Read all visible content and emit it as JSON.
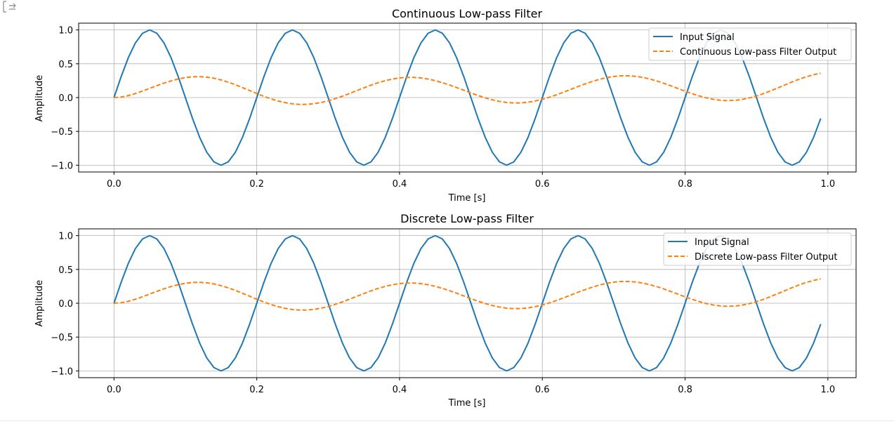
{
  "colors": {
    "input": "#1f77b4",
    "output": "#ff7f0e",
    "grid": "#b0b0b0",
    "axes": "#000000"
  },
  "chart_data": [
    {
      "type": "line",
      "title": "Continuous Low-pass Filter",
      "xlabel": "Time [s]",
      "ylabel": "Amplitude",
      "xlim": [
        -0.0495,
        1.0395
      ],
      "ylim": [
        -1.1,
        1.1
      ],
      "xticks": [
        0.0,
        0.2,
        0.4,
        0.6,
        0.8,
        1.0
      ],
      "xtick_labels": [
        "0.0",
        "0.2",
        "0.4",
        "0.6",
        "0.8",
        "1.0"
      ],
      "yticks": [
        1.0,
        0.5,
        0.0,
        -0.5,
        -1.0
      ],
      "ytick_labels": [
        "1.0",
        "0.5",
        "0.0",
        "−0.5",
        "−1.0"
      ],
      "grid": true,
      "legend_position": "top-right",
      "series": [
        {
          "name": "Input Signal",
          "style": "solid",
          "color_key": "input",
          "x_range": [
            0.0,
            0.99
          ],
          "x_step": 0.01,
          "values": [
            0.0,
            0.309,
            0.588,
            0.809,
            0.951,
            1.0,
            0.951,
            0.809,
            0.588,
            0.309,
            0.0,
            -0.309,
            -0.588,
            -0.809,
            -0.951,
            -1.0,
            -0.951,
            -0.809,
            -0.588,
            -0.309,
            0.0,
            0.309,
            0.588,
            0.809,
            0.951,
            1.0,
            0.951,
            0.809,
            0.588,
            0.309,
            0.0,
            -0.309,
            -0.588,
            -0.809,
            -0.951,
            -1.0,
            -0.951,
            -0.809,
            -0.588,
            -0.309,
            0.0,
            0.309,
            0.588,
            0.809,
            0.951,
            1.0,
            0.951,
            0.809,
            0.588,
            0.309,
            0.0,
            -0.309,
            -0.588,
            -0.809,
            -0.951,
            -1.0,
            -0.951,
            -0.809,
            -0.588,
            -0.309,
            0.0,
            0.309,
            0.588,
            0.809,
            0.951,
            1.0,
            0.951,
            0.809,
            0.588,
            0.309,
            0.0,
            -0.309,
            -0.588,
            -0.809,
            -0.951,
            -1.0,
            -0.951,
            -0.809,
            -0.588,
            -0.309,
            0.0,
            0.309,
            0.588,
            0.809,
            0.951,
            1.0,
            0.951,
            0.809,
            0.588,
            0.309,
            0.0,
            -0.309,
            -0.588,
            -0.809,
            -0.951,
            -1.0,
            -0.951,
            -0.809,
            -0.588,
            -0.309
          ]
        },
        {
          "name": "Continuous Low-pass Filter Output",
          "style": "dashed",
          "color_key": "output",
          "x_range": [
            0.0,
            0.99
          ],
          "x_step": 0.01,
          "values": [
            0.0,
            0.0077,
            0.0287,
            0.0595,
            0.0964,
            0.1361,
            0.1759,
            0.2136,
            0.2473,
            0.2751,
            0.2955,
            0.3072,
            0.3095,
            0.3022,
            0.2856,
            0.2604,
            0.228,
            0.1898,
            0.1477,
            0.1038,
            0.06,
            0.0184,
            -0.0191,
            -0.0509,
            -0.0757,
            -0.0926,
            -0.1009,
            -0.1003,
            -0.091,
            -0.0733,
            -0.048,
            -0.0163,
            0.0205,
            0.0607,
            0.1024,
            0.144,
            0.1836,
            0.2194,
            0.2499,
            0.2739,
            0.2904,
            0.2987,
            0.2986,
            0.2902,
            0.2738,
            0.2502,
            0.2205,
            0.186,
            0.148,
            0.1083,
            0.0686,
            0.0306,
            -0.0039,
            -0.0333,
            -0.0564,
            -0.0721,
            -0.0796,
            -0.0785,
            -0.0688,
            -0.051,
            -0.026,
            0.0052,
            0.0412,
            0.0806,
            0.1217,
            0.1628,
            0.2022,
            0.2382,
            0.2693,
            0.2942,
            0.3118,
            0.3214,
            0.3225,
            0.3151,
            0.2995,
            0.2764,
            0.2468,
            0.2122,
            0.1742,
            0.1346,
            0.0951,
            0.0576,
            0.0237,
            -0.0049,
            -0.0266,
            -0.0404,
            -0.0453,
            -0.041,
            -0.0276,
            -0.0057,
            0.0237,
            0.0593,
            0.0997,
            0.1432,
            0.1878,
            0.2316,
            0.2724,
            0.3085,
            0.338,
            0.3597
          ]
        }
      ]
    },
    {
      "type": "line",
      "title": "Discrete Low-pass Filter",
      "xlabel": "Time [s]",
      "ylabel": "Amplitude",
      "xlim": [
        -0.0495,
        1.0395
      ],
      "ylim": [
        -1.1,
        1.1
      ],
      "xticks": [
        0.0,
        0.2,
        0.4,
        0.6,
        0.8,
        1.0
      ],
      "xtick_labels": [
        "0.0",
        "0.2",
        "0.4",
        "0.6",
        "0.8",
        "1.0"
      ],
      "yticks": [
        1.0,
        0.5,
        0.0,
        -0.5,
        -1.0
      ],
      "ytick_labels": [
        "1.0",
        "0.5",
        "0.0",
        "−0.5",
        "−1.0"
      ],
      "grid": true,
      "legend_position": "top-right",
      "series": [
        {
          "name": "Input Signal",
          "style": "solid",
          "color_key": "input",
          "x_range": [
            0.0,
            0.99
          ],
          "x_step": 0.01,
          "values": [
            0.0,
            0.309,
            0.588,
            0.809,
            0.951,
            1.0,
            0.951,
            0.809,
            0.588,
            0.309,
            0.0,
            -0.309,
            -0.588,
            -0.809,
            -0.951,
            -1.0,
            -0.951,
            -0.809,
            -0.588,
            -0.309,
            0.0,
            0.309,
            0.588,
            0.809,
            0.951,
            1.0,
            0.951,
            0.809,
            0.588,
            0.309,
            0.0,
            -0.309,
            -0.588,
            -0.809,
            -0.951,
            -1.0,
            -0.951,
            -0.809,
            -0.588,
            -0.309,
            0.0,
            0.309,
            0.588,
            0.809,
            0.951,
            1.0,
            0.951,
            0.809,
            0.588,
            0.309,
            0.0,
            -0.309,
            -0.588,
            -0.809,
            -0.951,
            -1.0,
            -0.951,
            -0.809,
            -0.588,
            -0.309,
            0.0,
            0.309,
            0.588,
            0.809,
            0.951,
            1.0,
            0.951,
            0.809,
            0.588,
            0.309,
            0.0,
            -0.309,
            -0.588,
            -0.809,
            -0.951,
            -1.0,
            -0.951,
            -0.809,
            -0.588,
            -0.309,
            0.0,
            0.309,
            0.588,
            0.809,
            0.951,
            1.0,
            0.951,
            0.809,
            0.588,
            0.309,
            0.0,
            -0.309,
            -0.588,
            -0.809,
            -0.951,
            -1.0,
            -0.951,
            -0.809,
            -0.588,
            -0.309
          ]
        },
        {
          "name": "Discrete Low-pass Filter Output",
          "style": "dashed",
          "color_key": "output",
          "x_range": [
            0.0,
            0.99
          ],
          "x_step": 0.01,
          "values": [
            0.0,
            0.0077,
            0.0287,
            0.0595,
            0.0964,
            0.1361,
            0.1759,
            0.2136,
            0.2473,
            0.2751,
            0.2955,
            0.3072,
            0.3095,
            0.3022,
            0.2856,
            0.2604,
            0.228,
            0.1898,
            0.1477,
            0.1038,
            0.06,
            0.0184,
            -0.0191,
            -0.0509,
            -0.0757,
            -0.0926,
            -0.1009,
            -0.1003,
            -0.091,
            -0.0733,
            -0.048,
            -0.0163,
            0.0205,
            0.0607,
            0.1024,
            0.144,
            0.1836,
            0.2194,
            0.2499,
            0.2739,
            0.2904,
            0.2987,
            0.2986,
            0.2902,
            0.2738,
            0.2502,
            0.2205,
            0.186,
            0.148,
            0.1083,
            0.0686,
            0.0306,
            -0.0039,
            -0.0333,
            -0.0564,
            -0.0721,
            -0.0796,
            -0.0785,
            -0.0688,
            -0.051,
            -0.026,
            0.0052,
            0.0412,
            0.0806,
            0.1217,
            0.1628,
            0.2022,
            0.2382,
            0.2693,
            0.2942,
            0.3118,
            0.3214,
            0.3225,
            0.3151,
            0.2995,
            0.2764,
            0.2468,
            0.2122,
            0.1742,
            0.1346,
            0.0951,
            0.0576,
            0.0237,
            -0.0049,
            -0.0266,
            -0.0404,
            -0.0453,
            -0.041,
            -0.0276,
            -0.0057,
            0.0237,
            0.0593,
            0.0997,
            0.1432,
            0.1878,
            0.2316,
            0.2724,
            0.3085,
            0.338,
            0.3597
          ]
        }
      ]
    }
  ]
}
